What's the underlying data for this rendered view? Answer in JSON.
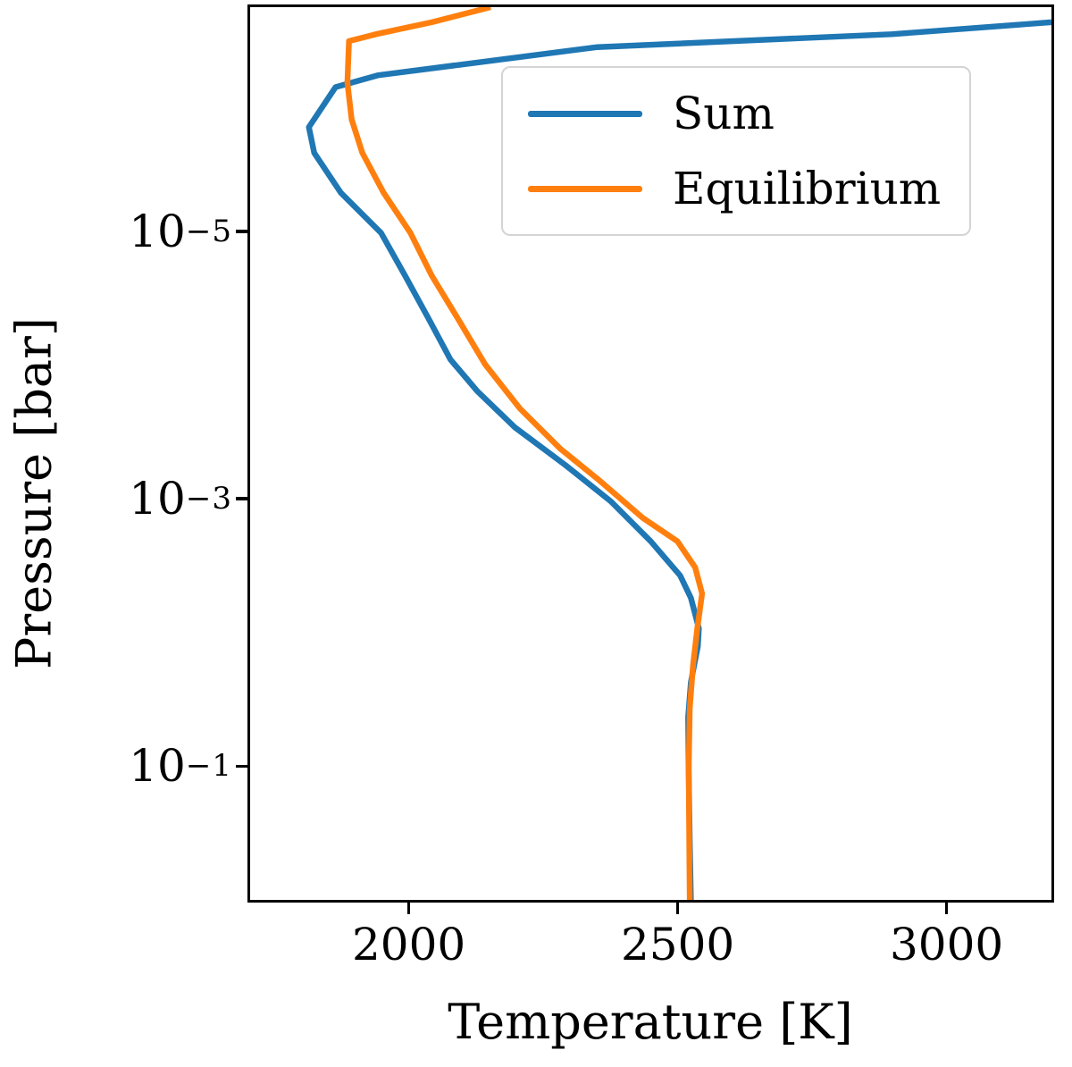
{
  "figure": {
    "background": "#ffffff",
    "axis_color": "#000000"
  },
  "chart_data": {
    "type": "line",
    "title": "",
    "xlabel": "Temperature [K]",
    "ylabel": "Pressure [bar]",
    "xlim": [
      1700,
      3200
    ],
    "yscale": "log",
    "y_inverted": true,
    "ylim_pressure_top": 2e-07,
    "ylim_pressure_bottom": 1.05,
    "grid": false,
    "xticks": [
      {
        "value": 2000,
        "label": "2000"
      },
      {
        "value": 2500,
        "label": "2500"
      },
      {
        "value": 3000,
        "label": "3000"
      }
    ],
    "yticks": [
      {
        "value": 1e-05,
        "base": "10",
        "exp": "−5"
      },
      {
        "value": 0.001,
        "base": "10",
        "exp": "−3"
      },
      {
        "value": 0.1,
        "base": "10",
        "exp": "−1"
      }
    ],
    "legend": {
      "position": "upper right",
      "entries": [
        {
          "label": "Sum",
          "color": "#1f77b4"
        },
        {
          "label": "Equilibrium",
          "color": "#ff7f0e"
        }
      ]
    },
    "series": [
      {
        "name": "Sum",
        "color": "#1f77b4",
        "linewidth": 6.5,
        "points_format": "[temperature_K, pressure_bar]",
        "points": [
          [
            3200,
            2.6e-07
          ],
          [
            2900,
            3.2e-07
          ],
          [
            2350,
            4e-07
          ],
          [
            1940,
            6.5e-07
          ],
          [
            1860,
            8e-07
          ],
          [
            1810,
            1.6e-06
          ],
          [
            1820,
            2.5e-06
          ],
          [
            1870,
            5e-06
          ],
          [
            1945,
            1e-05
          ],
          [
            1990,
            2.1e-05
          ],
          [
            2035,
            4.5e-05
          ],
          [
            2075,
            9e-05
          ],
          [
            2125,
            0.000155
          ],
          [
            2195,
            0.00029
          ],
          [
            2290,
            0.00056
          ],
          [
            2375,
            0.00105
          ],
          [
            2450,
            0.0021
          ],
          [
            2505,
            0.0038
          ],
          [
            2525,
            0.0056
          ],
          [
            2540,
            0.0095
          ],
          [
            2538,
            0.013
          ],
          [
            2525,
            0.024
          ],
          [
            2520,
            0.044
          ],
          [
            2521,
            0.11
          ],
          [
            2523,
            0.37
          ],
          [
            2525,
            1.05
          ]
        ]
      },
      {
        "name": "Equilibrium",
        "color": "#ff7f0e",
        "linewidth": 6.5,
        "points_format": "[temperature_K, pressure_bar]",
        "points": [
          [
            2150,
            2e-07
          ],
          [
            2040,
            2.6e-07
          ],
          [
            1935,
            3.2e-07
          ],
          [
            1885,
            3.6e-07
          ],
          [
            1882,
            7.4e-07
          ],
          [
            1890,
            1.4e-06
          ],
          [
            1910,
            2.5e-06
          ],
          [
            1950,
            5e-06
          ],
          [
            2000,
            1e-05
          ],
          [
            2040,
            2.1e-05
          ],
          [
            2090,
            4.5e-05
          ],
          [
            2140,
            9.8e-05
          ],
          [
            2205,
            0.00021
          ],
          [
            2280,
            0.00042
          ],
          [
            2350,
            0.00071
          ],
          [
            2435,
            0.0014
          ],
          [
            2500,
            0.0021
          ],
          [
            2533,
            0.0033
          ],
          [
            2546,
            0.0052
          ],
          [
            2537,
            0.0095
          ],
          [
            2529,
            0.018
          ],
          [
            2523,
            0.038
          ],
          [
            2521,
            0.11
          ],
          [
            2523,
            1.05
          ]
        ]
      }
    ]
  }
}
